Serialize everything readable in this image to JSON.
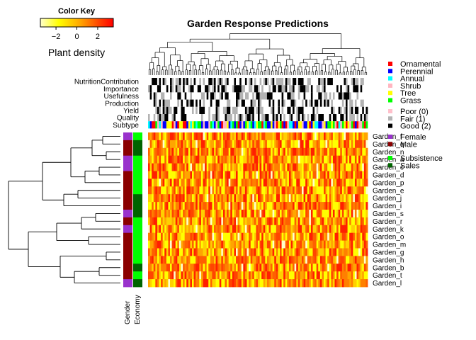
{
  "chart_data": {
    "type": "heatmap",
    "title": "Garden Response Predictions",
    "color_key": {
      "title": "Color Key",
      "label": "Plant density",
      "ticks": [
        -2,
        0,
        2
      ],
      "range": [
        -3.5,
        3.5
      ],
      "colors": [
        "#ffffcc",
        "#ffff00",
        "#ffa500",
        "#ff4500",
        "#ff0000"
      ]
    },
    "row_labels": [
      "Garden_f",
      "Garden_q",
      "Garden_n",
      "Garden_a",
      "Garden_c",
      "Garden_d",
      "Garden_p",
      "Garden_e",
      "Garden_j",
      "Garden_i",
      "Garden_s",
      "Garden_r",
      "Garden_k",
      "Garden_o",
      "Garden_m",
      "Garden_g",
      "Garden_h",
      "Garden_b",
      "Garden_t",
      "Garden_l"
    ],
    "row_annotations": {
      "labels": [
        "Gender",
        "Economy"
      ],
      "gender": [
        "Female",
        "Male",
        "Male",
        "Female",
        "Female",
        "Male",
        "Male",
        "Male",
        "Male",
        "Male",
        "Female",
        "Male",
        "Female",
        "Male",
        "Male",
        "Male",
        "Male",
        "Male",
        "Male",
        "Female"
      ],
      "economy": [
        "Subsistence",
        "Sales",
        "Sales",
        "Subsistence",
        "Subsistence",
        "Subsistence",
        "Subsistence",
        "Subsistence",
        "Sales",
        "Sales",
        "Sales",
        "Subsistence",
        "Subsistence",
        "Subsistence",
        "Subsistence",
        "Subsistence",
        "Subsistence",
        "Sales",
        "Subsistence",
        "Sales"
      ]
    },
    "column_annotations": {
      "labels": [
        "NutritionContribution",
        "Importance",
        "Usefulness",
        "Production",
        "Yield",
        "Quality",
        "Subtype"
      ],
      "rating_levels": [
        "Poor (0)",
        "Fair (1)",
        "Good (2)"
      ],
      "subtype_levels": [
        "Ornamental",
        "Perennial",
        "Annual",
        "Shrub",
        "Tree",
        "Grass"
      ]
    },
    "column_count": 120,
    "legend": {
      "subtype": [
        {
          "label": "Ornamental",
          "color": "#ff0000"
        },
        {
          "label": "Perennial",
          "color": "#0000ff"
        },
        {
          "label": "Annual",
          "color": "#00ffff"
        },
        {
          "label": "Shrub",
          "color": "#ffb6c1"
        },
        {
          "label": "Tree",
          "color": "#ffff00"
        },
        {
          "label": "Grass",
          "color": "#00ff00"
        }
      ],
      "rating": [
        {
          "label": "Poor (0)",
          "color": "#ffc0cb"
        },
        {
          "label": "Fair (1)",
          "color": "#b3b3b3"
        },
        {
          "label": "Good (2)",
          "color": "#000000"
        }
      ],
      "gender": [
        {
          "label": "Female",
          "color": "#9932cc"
        },
        {
          "label": "Male",
          "color": "#8b0000"
        }
      ],
      "economy": [
        {
          "label": "Subsistence",
          "color": "#00ff00"
        },
        {
          "label": "Sales",
          "color": "#006400"
        }
      ]
    }
  }
}
